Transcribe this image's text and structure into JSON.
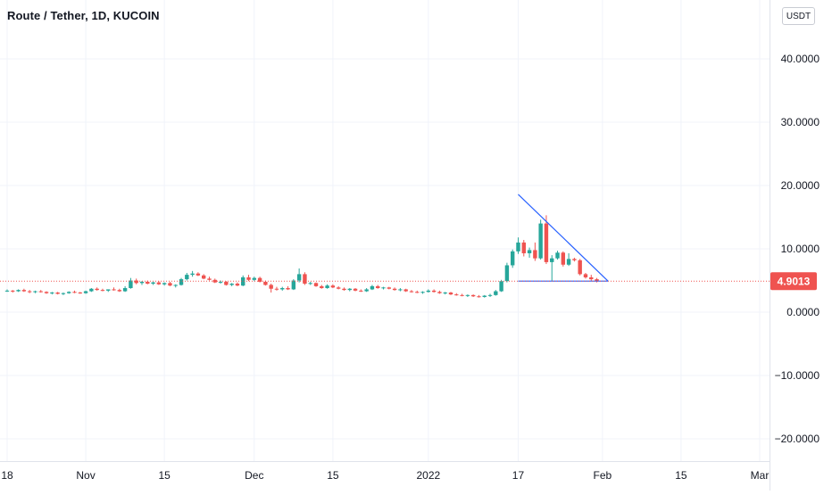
{
  "header": {
    "title": "Route / Tether, 1D, KUCOIN",
    "currency_label": "USDT"
  },
  "price_tag": {
    "value": "4.9013",
    "color": "#ef5350"
  },
  "colors": {
    "up": "#26a69a",
    "down": "#ef5350",
    "trendline": "#2962ff",
    "grid": "#f0f3fa",
    "axis_text": "#131722"
  },
  "chart_data": {
    "type": "candlestick",
    "symbol": "Route / Tether",
    "interval": "1D",
    "exchange": "KUCOIN",
    "y_axis": {
      "ticks": [
        40,
        30,
        20,
        10,
        0,
        -10,
        -20
      ],
      "tick_labels": [
        "40.0000",
        "30.0000",
        "20.0000",
        "10.0000",
        "0.0000",
        "−10.0000",
        "−20.0000"
      ],
      "range": [
        -23,
        49
      ],
      "grid": true
    },
    "x_axis": {
      "labels": [
        "18",
        "Nov",
        "15",
        "Dec",
        "15",
        "2022",
        "17",
        "Feb",
        "15",
        "Mar"
      ],
      "range": [
        "2021-10-18",
        "2022-03-01"
      ]
    },
    "last_price": 4.9013,
    "series": [
      {
        "values": [
          [
            "2021-10-18",
            3.4,
            3.6,
            3.2,
            3.4
          ],
          [
            "2021-10-19",
            3.4,
            3.5,
            3.1,
            3.3
          ],
          [
            "2021-10-20",
            3.3,
            3.6,
            3.2,
            3.5
          ],
          [
            "2021-10-21",
            3.5,
            3.7,
            3.2,
            3.3
          ],
          [
            "2021-10-22",
            3.3,
            3.5,
            3.0,
            3.2
          ],
          [
            "2021-10-23",
            3.2,
            3.4,
            3.0,
            3.3
          ],
          [
            "2021-10-24",
            3.3,
            3.5,
            3.1,
            3.2
          ],
          [
            "2021-10-25",
            3.2,
            3.3,
            2.9,
            3.0
          ],
          [
            "2021-10-26",
            3.0,
            3.2,
            2.8,
            3.1
          ],
          [
            "2021-10-27",
            3.1,
            3.2,
            2.8,
            2.9
          ],
          [
            "2021-10-28",
            2.9,
            3.1,
            2.7,
            3.0
          ],
          [
            "2021-10-29",
            3.0,
            3.3,
            2.9,
            3.2
          ],
          [
            "2021-10-30",
            3.2,
            3.4,
            3.0,
            3.1
          ],
          [
            "2021-10-31",
            3.1,
            3.2,
            2.9,
            3.0
          ],
          [
            "2021-11-01",
            3.0,
            3.4,
            2.9,
            3.3
          ],
          [
            "2021-11-02",
            3.3,
            3.8,
            3.2,
            3.7
          ],
          [
            "2021-11-03",
            3.7,
            3.9,
            3.4,
            3.5
          ],
          [
            "2021-11-04",
            3.5,
            3.7,
            3.3,
            3.4
          ],
          [
            "2021-11-05",
            3.4,
            3.6,
            3.2,
            3.6
          ],
          [
            "2021-11-06",
            3.6,
            3.9,
            3.4,
            3.5
          ],
          [
            "2021-11-07",
            3.5,
            3.7,
            3.2,
            3.3
          ],
          [
            "2021-11-08",
            3.3,
            4.1,
            3.2,
            3.8
          ],
          [
            "2021-11-09",
            3.8,
            5.4,
            3.7,
            5.0
          ],
          [
            "2021-11-10",
            5.0,
            5.3,
            4.4,
            4.6
          ],
          [
            "2021-11-11",
            4.6,
            4.9,
            4.3,
            4.8
          ],
          [
            "2021-11-12",
            4.8,
            5.0,
            4.4,
            4.5
          ],
          [
            "2021-11-13",
            4.5,
            4.8,
            4.3,
            4.7
          ],
          [
            "2021-11-14",
            4.7,
            4.9,
            4.3,
            4.4
          ],
          [
            "2021-11-15",
            4.4,
            4.7,
            4.2,
            4.6
          ],
          [
            "2021-11-16",
            4.6,
            4.8,
            4.1,
            4.2
          ],
          [
            "2021-11-17",
            4.2,
            4.4,
            3.9,
            4.3
          ],
          [
            "2021-11-18",
            4.3,
            5.4,
            4.2,
            5.2
          ],
          [
            "2021-11-19",
            5.2,
            6.2,
            5.0,
            5.9
          ],
          [
            "2021-11-20",
            5.9,
            6.5,
            5.6,
            6.1
          ],
          [
            "2021-11-21",
            6.1,
            6.3,
            5.7,
            5.8
          ],
          [
            "2021-11-22",
            5.8,
            6.0,
            5.2,
            5.3
          ],
          [
            "2021-11-23",
            5.3,
            5.6,
            5.0,
            5.1
          ],
          [
            "2021-11-24",
            5.1,
            5.3,
            4.6,
            4.7
          ],
          [
            "2021-11-25",
            4.7,
            5.0,
            4.5,
            4.8
          ],
          [
            "2021-11-26",
            4.8,
            4.9,
            4.2,
            4.3
          ],
          [
            "2021-11-27",
            4.3,
            4.6,
            4.1,
            4.5
          ],
          [
            "2021-11-28",
            4.5,
            4.7,
            4.1,
            4.2
          ],
          [
            "2021-11-29",
            4.2,
            5.8,
            4.1,
            5.5
          ],
          [
            "2021-11-30",
            5.5,
            5.9,
            4.9,
            5.1
          ],
          [
            "2021-12-01",
            5.1,
            5.6,
            4.9,
            5.4
          ],
          [
            "2021-12-02",
            5.4,
            5.6,
            4.7,
            4.8
          ],
          [
            "2021-12-03",
            4.8,
            5.0,
            4.2,
            4.3
          ],
          [
            "2021-12-04",
            4.3,
            4.5,
            3.1,
            3.7
          ],
          [
            "2021-12-05",
            3.7,
            4.0,
            3.4,
            3.6
          ],
          [
            "2021-12-06",
            3.6,
            4.0,
            3.4,
            3.8
          ],
          [
            "2021-12-07",
            3.8,
            4.1,
            3.5,
            3.6
          ],
          [
            "2021-12-08",
            3.6,
            5.2,
            3.5,
            5.0
          ],
          [
            "2021-12-09",
            5.0,
            6.9,
            4.7,
            6.0
          ],
          [
            "2021-12-10",
            6.0,
            6.3,
            4.3,
            4.5
          ],
          [
            "2021-12-11",
            4.5,
            4.8,
            4.3,
            4.6
          ],
          [
            "2021-12-12",
            4.6,
            4.7,
            4.0,
            4.1
          ],
          [
            "2021-12-13",
            4.1,
            4.3,
            3.7,
            3.8
          ],
          [
            "2021-12-14",
            3.8,
            4.4,
            3.7,
            4.2
          ],
          [
            "2021-12-15",
            4.2,
            4.4,
            3.8,
            3.9
          ],
          [
            "2021-12-16",
            3.9,
            4.1,
            3.6,
            3.7
          ],
          [
            "2021-12-17",
            3.7,
            3.9,
            3.4,
            3.5
          ],
          [
            "2021-12-18",
            3.5,
            3.8,
            3.3,
            3.7
          ],
          [
            "2021-12-19",
            3.7,
            3.8,
            3.3,
            3.4
          ],
          [
            "2021-12-20",
            3.4,
            3.6,
            3.2,
            3.3
          ],
          [
            "2021-12-21",
            3.3,
            3.8,
            3.2,
            3.6
          ],
          [
            "2021-12-22",
            3.6,
            4.3,
            3.5,
            4.1
          ],
          [
            "2021-12-23",
            4.1,
            4.3,
            3.7,
            3.8
          ],
          [
            "2021-12-24",
            3.8,
            4.0,
            3.6,
            3.9
          ],
          [
            "2021-12-25",
            3.9,
            4.0,
            3.6,
            3.7
          ],
          [
            "2021-12-26",
            3.7,
            3.9,
            3.4,
            3.5
          ],
          [
            "2021-12-27",
            3.5,
            3.8,
            3.3,
            3.6
          ],
          [
            "2021-12-28",
            3.6,
            3.7,
            3.2,
            3.3
          ],
          [
            "2021-12-29",
            3.3,
            3.5,
            3.1,
            3.2
          ],
          [
            "2021-12-30",
            3.2,
            3.4,
            3.0,
            3.1
          ],
          [
            "2021-12-31",
            3.1,
            3.3,
            2.9,
            3.2
          ],
          [
            "2022-01-01",
            3.2,
            3.6,
            3.1,
            3.4
          ],
          [
            "2022-01-02",
            3.4,
            3.6,
            3.1,
            3.2
          ],
          [
            "2022-01-03",
            3.2,
            3.4,
            2.9,
            3.0
          ],
          [
            "2022-01-04",
            3.0,
            3.2,
            2.8,
            3.1
          ],
          [
            "2022-01-05",
            3.1,
            3.2,
            2.7,
            2.8
          ],
          [
            "2022-01-06",
            2.8,
            3.0,
            2.6,
            2.7
          ],
          [
            "2022-01-07",
            2.7,
            2.9,
            2.5,
            2.6
          ],
          [
            "2022-01-08",
            2.6,
            2.8,
            2.4,
            2.7
          ],
          [
            "2022-01-09",
            2.7,
            2.8,
            2.4,
            2.5
          ],
          [
            "2022-01-10",
            2.5,
            2.7,
            2.3,
            2.4
          ],
          [
            "2022-01-11",
            2.4,
            2.7,
            2.3,
            2.6
          ],
          [
            "2022-01-12",
            2.6,
            2.9,
            2.4,
            2.7
          ],
          [
            "2022-01-13",
            2.7,
            3.5,
            2.6,
            3.3
          ],
          [
            "2022-01-14",
            3.3,
            5.1,
            3.2,
            4.9
          ],
          [
            "2022-01-15",
            4.9,
            7.8,
            4.7,
            7.4
          ],
          [
            "2022-01-16",
            7.4,
            9.9,
            7.0,
            9.6
          ],
          [
            "2022-01-17",
            9.6,
            11.8,
            9.2,
            11.0
          ],
          [
            "2022-01-18",
            11.0,
            11.4,
            8.8,
            9.3
          ],
          [
            "2022-01-19",
            9.3,
            10.2,
            8.6,
            9.8
          ],
          [
            "2022-01-20",
            9.8,
            11.0,
            8.1,
            8.5
          ],
          [
            "2022-01-21",
            8.5,
            14.6,
            8.3,
            14.0
          ],
          [
            "2022-01-22",
            14.0,
            15.3,
            7.6,
            7.9
          ],
          [
            "2022-01-23",
            7.9,
            9.0,
            4.9,
            8.5
          ],
          [
            "2022-01-24",
            8.5,
            9.7,
            8.3,
            9.4
          ],
          [
            "2022-01-25",
            9.4,
            9.6,
            7.2,
            7.5
          ],
          [
            "2022-01-26",
            7.5,
            9.3,
            7.3,
            8.4
          ],
          [
            "2022-01-27",
            8.4,
            8.6,
            8.0,
            8.2
          ],
          [
            "2022-01-28",
            8.2,
            8.4,
            5.8,
            6.0
          ],
          [
            "2022-01-29",
            6.0,
            6.2,
            5.3,
            5.5
          ],
          [
            "2022-01-30",
            5.5,
            5.9,
            4.9,
            5.2
          ],
          [
            "2022-01-31",
            5.2,
            5.4,
            4.7,
            4.9
          ]
        ]
      }
    ],
    "annotations": [
      {
        "type": "trendline",
        "from": [
          "2022-01-17",
          18.6
        ],
        "to": [
          "2022-02-02",
          4.9
        ]
      },
      {
        "type": "trendline",
        "from": [
          "2022-01-17",
          4.9
        ],
        "to": [
          "2022-02-02",
          4.9
        ]
      }
    ]
  }
}
